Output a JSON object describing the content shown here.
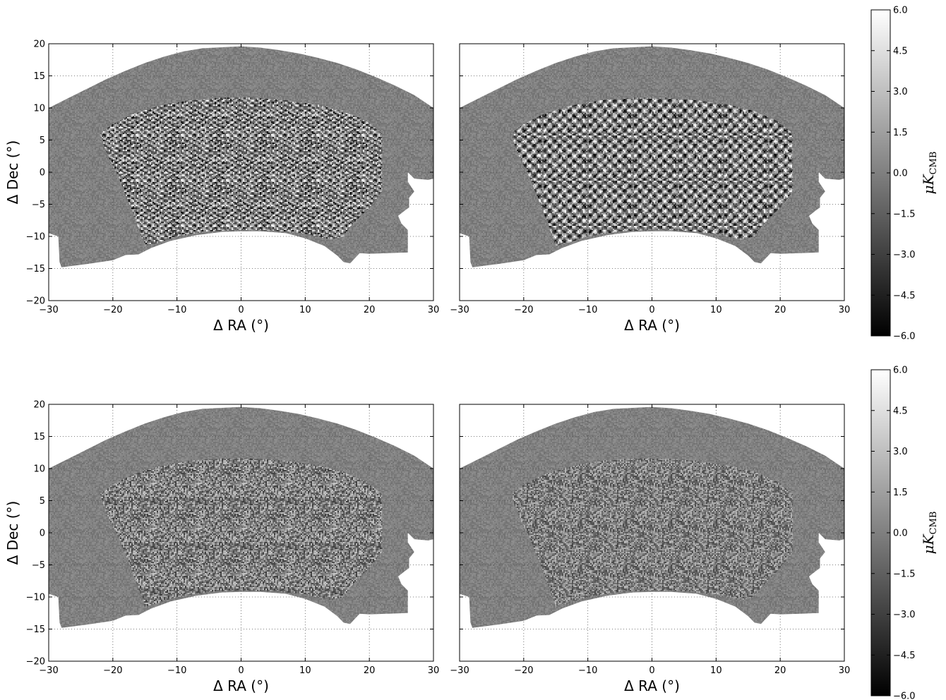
{
  "chart_data": [
    {
      "type": "heatmap",
      "panel": "top-left",
      "xlabel": "Δ RA (°)",
      "ylabel": "Δ Dec (°)",
      "xlim": [
        -30,
        30
      ],
      "ylim": [
        -20,
        20
      ],
      "xticks": [
        -30,
        -20,
        -10,
        0,
        10,
        20,
        30
      ],
      "yticks": [
        -20,
        -15,
        -10,
        -5,
        0,
        5,
        10,
        15,
        20
      ],
      "grid": true,
      "texture": "grid-pattern (horizontal/vertical)",
      "inner_amplitude": 1.0
    },
    {
      "type": "heatmap",
      "panel": "top-right",
      "xlabel": "Δ RA (°)",
      "xlim": [
        -30,
        30
      ],
      "ylim": [
        -20,
        20
      ],
      "xticks": [
        -30,
        -20,
        -10,
        0,
        10,
        20,
        30
      ],
      "grid": true,
      "texture": "diagonal cross-hatch",
      "inner_amplitude": 1.0
    },
    {
      "type": "heatmap",
      "panel": "bottom-left",
      "xlabel": "Δ RA (°)",
      "ylabel": "Δ Dec (°)",
      "xlim": [
        -30,
        30
      ],
      "ylim": [
        -20,
        20
      ],
      "xticks": [
        -30,
        -20,
        -10,
        0,
        10,
        20,
        30
      ],
      "yticks": [
        -20,
        -15,
        -10,
        -5,
        0,
        5,
        10,
        15,
        20
      ],
      "grid": true,
      "texture": "random noise",
      "inner_amplitude": 0.55
    },
    {
      "type": "heatmap",
      "panel": "bottom-right",
      "xlabel": "Δ RA (°)",
      "xlim": [
        -30,
        30
      ],
      "ylim": [
        -20,
        20
      ],
      "xticks": [
        -30,
        -20,
        -10,
        0,
        10,
        20,
        30
      ],
      "grid": true,
      "texture": "random noise",
      "inner_amplitude": 0.45
    }
  ],
  "colorbars": [
    {
      "label": "μK",
      "label_sub": "CMB",
      "range": [
        -6.0,
        6.0
      ],
      "ticks": [
        "6.0",
        "4.5",
        "3.0",
        "1.5",
        "0.0",
        "−1.5",
        "−3.0",
        "−4.5",
        "−6.0"
      ],
      "colormap": "gray"
    },
    {
      "label": "μK",
      "label_sub": "CMB",
      "range": [
        -6.0,
        6.0
      ],
      "ticks": [
        "6.0",
        "4.5",
        "3.0",
        "1.5",
        "0.0",
        "−1.5",
        "−3.0",
        "−4.5",
        "−6.0"
      ],
      "colormap": "gray"
    }
  ],
  "labels": {
    "xlabel": "Δ RA (°)",
    "ylabel": "Δ Dec (°)"
  }
}
